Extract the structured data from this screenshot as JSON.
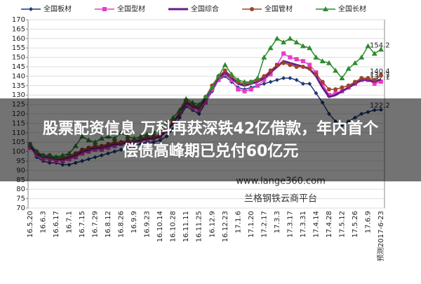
{
  "chart_data": {
    "type": "line",
    "categories": [
      "16.5.20",
      null,
      "16.6.3",
      null,
      "16.6.17",
      null,
      "16.7.1",
      null,
      "16.7.15",
      null,
      "16.7.29",
      null,
      "16.8.12",
      null,
      "16.8.26",
      null,
      "16.9.9",
      null,
      "16.9.23",
      null,
      "16.10.14",
      null,
      "16.10.28",
      null,
      "16.11.11",
      null,
      "16.11.25",
      null,
      "16.12.9",
      null,
      "16.12.23",
      null,
      "17.1.6",
      null,
      "17.1.20",
      null,
      "17.2.17",
      null,
      "17.3.3",
      null,
      "17.3.17",
      null,
      "17.3.31",
      null,
      "17.4.14",
      null,
      "17.4.28",
      null,
      "17.5.12",
      null,
      "17.5.26",
      null,
      "17.6.9",
      null,
      "预测2017-6-23"
    ],
    "series": [
      {
        "name": "全国板材",
        "color": "#1f3a7a",
        "marker": "diamond",
        "line_width": 1.5,
        "values": [
          103,
          97,
          95,
          94,
          94,
          93,
          93,
          94,
          95,
          96,
          97,
          98,
          99,
          100,
          101,
          102,
          103,
          104,
          105,
          105,
          106,
          108,
          112,
          118,
          124,
          122,
          120,
          126,
          132,
          138,
          140,
          137,
          134,
          133,
          134,
          135,
          136,
          137,
          138,
          139,
          139,
          138,
          136,
          136,
          131,
          126,
          120,
          116,
          114,
          116,
          118,
          120,
          121,
          122,
          122.2
        ]
      },
      {
        "name": "全国型材",
        "color": "#e83cc8",
        "marker": "square",
        "line_width": 1.5,
        "values": [
          102,
          98,
          96,
          96,
          95,
          95,
          96,
          97,
          99,
          100,
          101,
          101,
          102,
          103,
          104,
          104,
          105,
          106,
          106,
          107,
          108,
          111,
          115,
          120,
          125,
          123,
          122,
          126,
          133,
          138,
          141,
          138,
          133,
          132,
          133,
          135,
          138,
          141,
          146,
          152,
          150,
          149,
          148,
          146,
          142,
          136,
          130,
          131,
          132,
          134,
          136,
          138,
          138,
          136,
          137.1
        ]
      },
      {
        "name": "全国综合",
        "color": "#6a1b8a",
        "marker": "none",
        "line_width": 3,
        "values": [
          103,
          99,
          97,
          97,
          96,
          96,
          97,
          98,
          100,
          101,
          102,
          102,
          103,
          104,
          104,
          105,
          105,
          106,
          107,
          107,
          108,
          111,
          115,
          120,
          126,
          124,
          123,
          128,
          134,
          139,
          142,
          139,
          136,
          135,
          136,
          137,
          139,
          142,
          145,
          148,
          147,
          146,
          145,
          144,
          140,
          134,
          129,
          130,
          132,
          134,
          136,
          138,
          138,
          137,
          138.3
        ]
      },
      {
        "name": "全国管材",
        "color": "#a0422a",
        "marker": "circle",
        "line_width": 1.5,
        "values": [
          104,
          100,
          98,
          98,
          97,
          97,
          98,
          99,
          101,
          102,
          103,
          103,
          104,
          105,
          105,
          106,
          106,
          107,
          108,
          108,
          109,
          112,
          116,
          121,
          127,
          125,
          124,
          129,
          135,
          140,
          143,
          140,
          137,
          136,
          137,
          138,
          140,
          143,
          146,
          147,
          146,
          145,
          145,
          144,
          141,
          137,
          133,
          133,
          134,
          135,
          137,
          139,
          139,
          138,
          140.4
        ]
      },
      {
        "name": "全国长材",
        "color": "#2e8b2e",
        "marker": "triangle",
        "line_width": 1.5,
        "values": [
          104,
          100,
          98,
          98,
          97,
          98,
          99,
          103,
          108,
          106,
          105,
          107,
          108,
          107,
          110,
          108,
          107,
          108,
          109,
          110,
          112,
          115,
          118,
          122,
          128,
          126,
          125,
          129,
          134,
          140,
          146,
          141,
          138,
          137,
          137,
          139,
          150,
          155,
          160,
          158,
          160,
          158,
          156,
          155,
          150,
          148,
          147,
          143,
          139,
          144,
          147,
          150,
          156,
          152,
          154.2
        ]
      }
    ],
    "ylim": [
      70,
      170
    ],
    "yticks": [
      70,
      75,
      80,
      85,
      90,
      95,
      100,
      105,
      110,
      115,
      120,
      125,
      130,
      135,
      140,
      145,
      150,
      155,
      160,
      165,
      170
    ],
    "grid": true,
    "legend": "top",
    "end_labels": true,
    "watermarks": [
      "www.lange360.com",
      "兰格钢铁云商平台"
    ]
  },
  "overlay": {
    "headline_lines": [
      "股票配资信息 万科再获深铁42亿借款，年内首个",
      "偿债高峰期已兑付60亿元"
    ]
  }
}
